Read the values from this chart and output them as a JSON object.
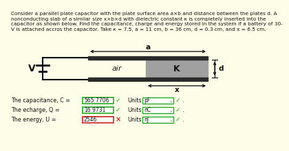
{
  "bg_color": "#fefee8",
  "title_lines": [
    "Consider a parallel plate capacitor with the plate surface area a×b and distance between the plates d. A",
    "nonconducting slab of a similar size x×b×d with dielectric constant κ is completely inserted into the",
    "capacitor as shown below. Find the capacitance, charge and energy stored in the system if a battery of 30-",
    "V is attached accros the capacitor. Take κ = 7.5, a = 11 cm, b = 36 cm, d = 0.3 cm, and x = 6.5 cm."
  ],
  "label_a": "a",
  "label_x": "x",
  "label_d": "d",
  "label_V": "V",
  "label_air": "air",
  "label_K": "Κ",
  "plate_color": "#2a2a2a",
  "dielectric_color": "#a0a0a0",
  "wire_color": "#000000",
  "box_green": "#22aa22",
  "box_red": "#cc2222",
  "check_green": "#22aa22",
  "cross_red": "#cc2222",
  "rows": [
    {
      "label": "The capacitance, C =",
      "value": "565.7706",
      "ok": true,
      "units": "pF"
    },
    {
      "label": "The echarge, Q =",
      "value": "16.9731",
      "ok": true,
      "units": "nC"
    },
    {
      "label": "The energy, U =",
      "value": "2546",
      "ok": false,
      "units": "nJ"
    }
  ]
}
